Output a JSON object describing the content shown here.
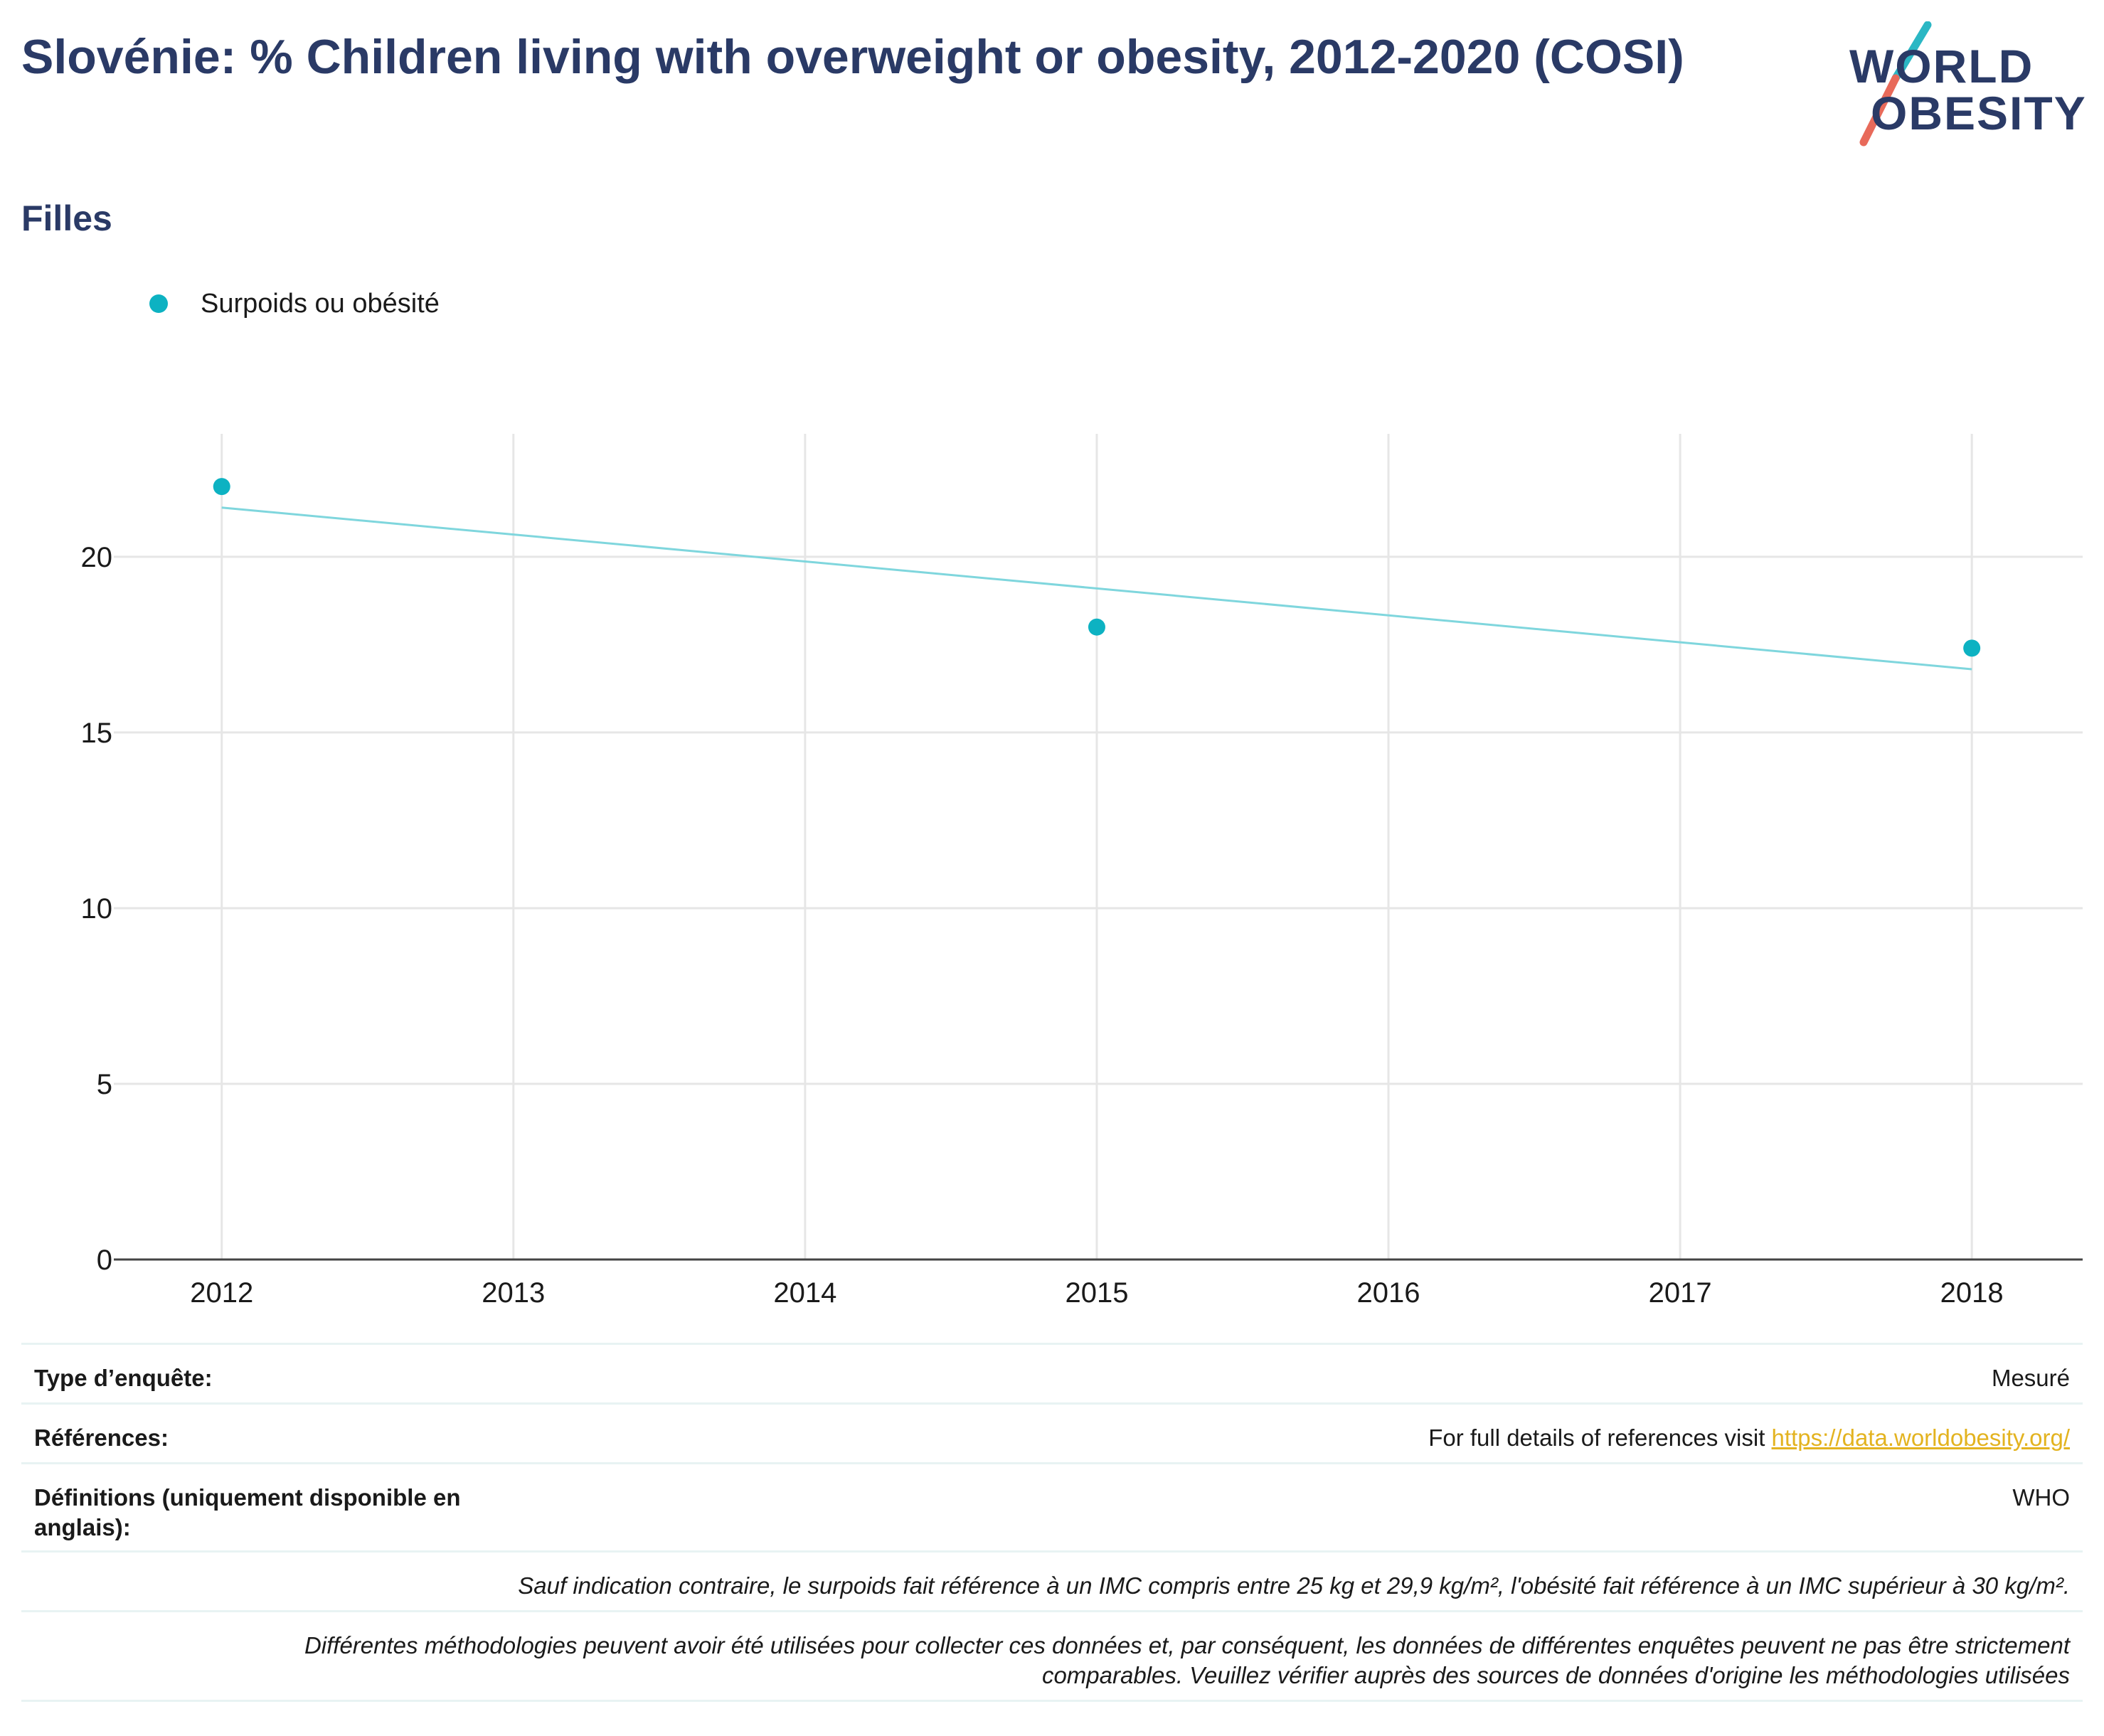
{
  "header": {
    "title": "Slovénie: % Children living with overweight or obesity, 2012-2020 (COSI)",
    "subtitle": "Filles"
  },
  "logo": {
    "line1": "WORLD",
    "line2": "OBESITY",
    "accent_teal": "#2bb7c4",
    "accent_coral": "#e86a5a"
  },
  "legend": {
    "label": "Surpoids ou obésité",
    "color": "#0db2c2"
  },
  "chart_data": {
    "type": "scatter",
    "title": "Slovénie: % Children living with overweight or obesity, 2012-2020 (COSI)",
    "subtitle": "Filles",
    "xlabel": "",
    "ylabel": "",
    "x_ticks": [
      2012,
      2013,
      2014,
      2015,
      2016,
      2017,
      2018
    ],
    "y_ticks": [
      0,
      5,
      10,
      15,
      20
    ],
    "xlim": [
      2011.63,
      2018.38
    ],
    "ylim": [
      0,
      23.5
    ],
    "grid": true,
    "legend_position": "top-left",
    "series": [
      {
        "name": "Surpoids ou obésité",
        "color": "#0db2c2",
        "points": [
          {
            "x": 2012,
            "y": 22.0
          },
          {
            "x": 2015,
            "y": 18.0
          },
          {
            "x": 2018,
            "y": 17.4
          }
        ],
        "trendline": {
          "color": "#7fd6dd",
          "from": {
            "x": 2012,
            "y": 21.4
          },
          "to": {
            "x": 2018,
            "y": 16.8
          }
        }
      }
    ]
  },
  "footer": {
    "survey_type_label": "Type d’enquête:",
    "survey_type_value": "Mesuré",
    "references_label": "Références:",
    "references_text": "For full details of references visit ",
    "references_link": "https://data.worldobesity.org/",
    "definitions_label": "Définitions (uniquement disponible en anglais):",
    "definitions_value": "WHO",
    "note1": "Sauf indication contraire, le surpoids fait référence à un IMC compris entre 25 kg et 29,9 kg/m², l'obésité fait référence à un IMC supérieur à 30 kg/m².",
    "note2": "Différentes méthodologies peuvent avoir été utilisées pour collecter ces données et, par conséquent, les données de différentes enquêtes peuvent ne pas être strictement comparables. Veuillez vérifier auprès des sources de données d'origine les méthodologies utilisées"
  }
}
